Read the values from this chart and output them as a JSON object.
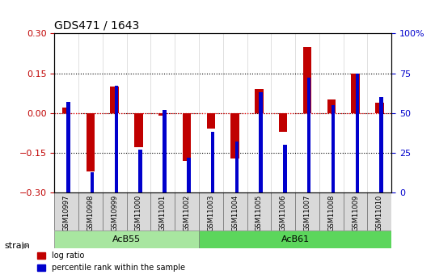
{
  "title": "GDS471 / 1643",
  "samples": [
    "GSM10997",
    "GSM10998",
    "GSM10999",
    "GSM11000",
    "GSM11001",
    "GSM11002",
    "GSM11003",
    "GSM11004",
    "GSM11005",
    "GSM11006",
    "GSM11007",
    "GSM11008",
    "GSM11009",
    "GSM11010"
  ],
  "log_ratio": [
    0.02,
    -0.22,
    0.1,
    -0.13,
    -0.01,
    -0.18,
    -0.06,
    -0.17,
    0.09,
    -0.07,
    0.25,
    0.05,
    0.15,
    0.04
  ],
  "percentile_rank": [
    57,
    13,
    67,
    27,
    52,
    22,
    38,
    32,
    63,
    30,
    72,
    55,
    75,
    60
  ],
  "groups": [
    {
      "label": "AcB55",
      "start": 0,
      "end": 6,
      "color": "#a8e6a0"
    },
    {
      "label": "AcB61",
      "start": 6,
      "end": 14,
      "color": "#5cd65c"
    }
  ],
  "ylim_left": [
    -0.3,
    0.3
  ],
  "ylim_right": [
    0,
    100
  ],
  "hlines": [
    0.15,
    0.0,
    -0.15
  ],
  "bar_color_red": "#c00000",
  "bar_color_blue": "#0000cc",
  "background_color": "#ffffff",
  "dotline_color": "#000080",
  "redline_color": "#ff4444"
}
